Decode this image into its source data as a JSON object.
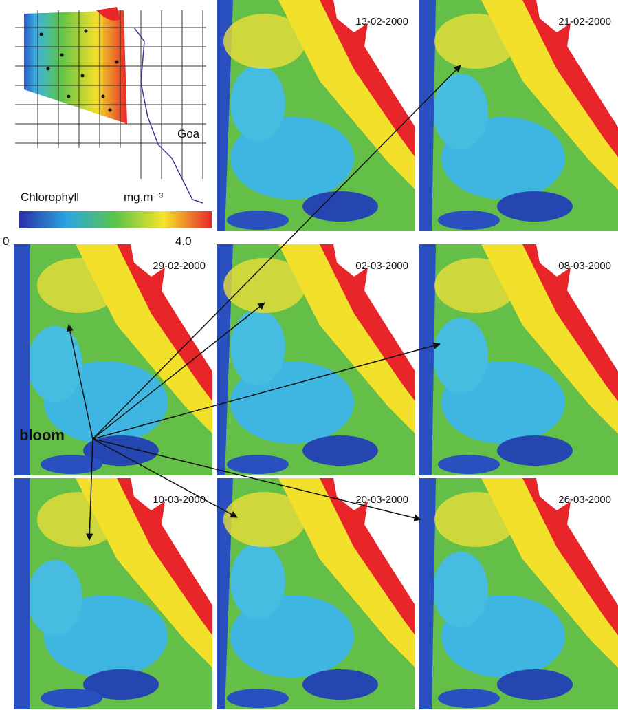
{
  "legend": {
    "title": "Chlorophyll",
    "unit": "mg.m⁻³",
    "min": "0",
    "max": "4.0"
  },
  "inset": {
    "label": "Goa"
  },
  "panels": [
    {
      "date": "13-02-2000"
    },
    {
      "date": "21-02-2000"
    },
    {
      "date": "29-02-2000"
    },
    {
      "date": "02-03-2000"
    },
    {
      "date": "08-03-2000"
    },
    {
      "date": "10-03-2000"
    },
    {
      "date": "20-03-2000"
    },
    {
      "date": "26-03-2000"
    }
  ],
  "annotation": "bloom"
}
